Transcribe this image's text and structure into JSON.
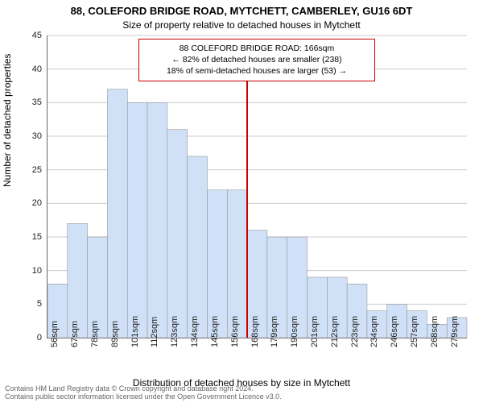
{
  "chart": {
    "type": "histogram",
    "title": "88, COLEFORD BRIDGE ROAD, MYTCHETT, CAMBERLEY, GU16 6DT",
    "subtitle": "Size of property relative to detached houses in Mytchett",
    "y_axis_label": "Number of detached properties",
    "x_axis_label": "Distribution of detached houses by size in Mytchett",
    "ylim": [
      0,
      45
    ],
    "ytick_step": 5,
    "x_categories": [
      "56sqm",
      "67sqm",
      "78sqm",
      "89sqm",
      "101sqm",
      "112sqm",
      "123sqm",
      "134sqm",
      "145sqm",
      "156sqm",
      "168sqm",
      "179sqm",
      "190sqm",
      "201sqm",
      "212sqm",
      "223sqm",
      "234sqm",
      "246sqm",
      "257sqm",
      "268sqm",
      "279sqm"
    ],
    "bar_values": [
      8,
      17,
      15,
      37,
      35,
      35,
      31,
      27,
      22,
      22,
      16,
      15,
      15,
      9,
      9,
      8,
      4,
      5,
      4,
      2,
      3
    ],
    "bar_fill": "#d0e1f7",
    "bar_stroke": "#888888",
    "grid_color": "#cccccc",
    "background": "#ffffff",
    "axis_color": "#666666",
    "tick_font_size": 11,
    "title_font_size": 13,
    "subtitle_font_size": 12,
    "axis_title_font_size": 12,
    "highlight": {
      "line_color": "#cc0000",
      "x_index": 10,
      "label_line1": "88 COLEFORD BRIDGE ROAD: 166sqm",
      "label_line2": "← 82% of detached houses are smaller (238)",
      "label_line3": "18% of semi-detached houses are larger (53) →",
      "box_border": "#cc0000",
      "box_bg": "#ffffff",
      "box_font_size": 10.5
    },
    "footnote_line1": "Contains HM Land Registry data © Crown copyright and database right 2024.",
    "footnote_line2": "Contains public sector information licensed under the Open Government Licence v3.0."
  }
}
